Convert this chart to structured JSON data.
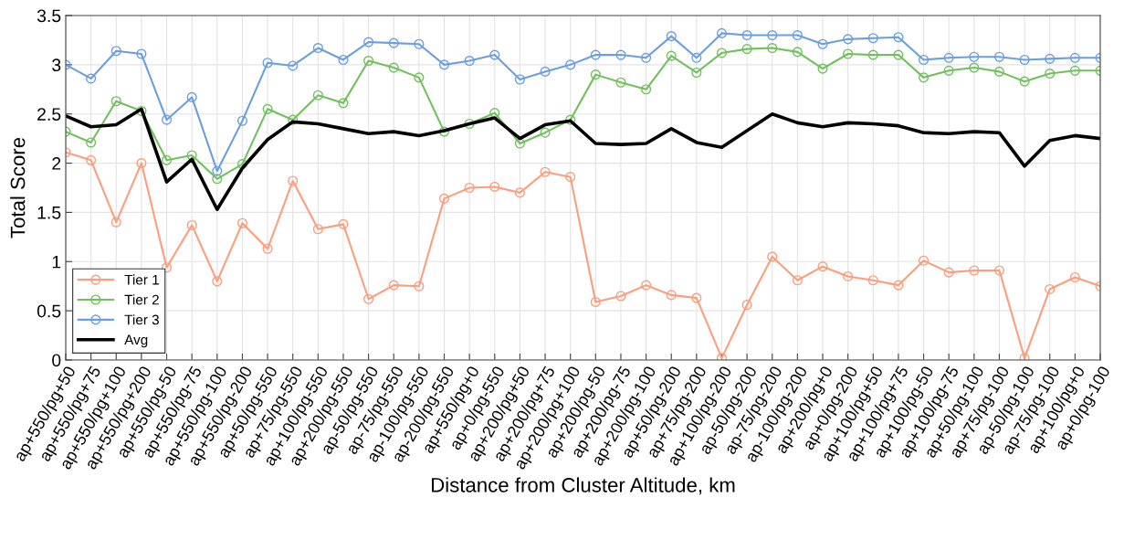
{
  "chart_data": {
    "type": "line",
    "xlabel": "Distance from Cluster Altitude, km",
    "ylabel": "Total Score",
    "categories": [
      "ap+550/pg+50",
      "ap+550/pg+75",
      "ap+550/pg+100",
      "ap+550/pg+200",
      "ap+550/pg-50",
      "ap+550/pg-75",
      "ap+550/pg-100",
      "ap+550/pg-200",
      "ap+50/pg-550",
      "ap+75/pg-550",
      "ap+100/pg-550",
      "ap+200/pg-550",
      "ap-50/pg-550",
      "ap-75/pg-550",
      "ap-100/pg-550",
      "ap-200/pg-550",
      "ap+550/pg+0",
      "ap+0/pg-550",
      "ap+200/pg+50",
      "ap+200/pg+75",
      "ap+200/pg+100",
      "ap+200/pg-50",
      "ap+200/pg-75",
      "ap+200/pg-100",
      "ap+50/pg-200",
      "ap+75/pg-200",
      "ap+100/pg-200",
      "ap-50/pg-200",
      "ap-75/pg-200",
      "ap-100/pg-200",
      "ap+200/pg+0",
      "ap+0/pg-200",
      "ap+100/pg+50",
      "ap+100/pg+75",
      "ap+100/pg-50",
      "ap+100/pg-75",
      "ap+50/pg-100",
      "ap+75/pg-100",
      "ap-50/pg-100",
      "ap-75/pg-100",
      "ap+100/pg+0",
      "ap+0/pg-100"
    ],
    "series": [
      {
        "name": "Tier 1",
        "color": "#fc9d7c",
        "marker": "circle",
        "values": [
          2.11,
          2.03,
          1.4,
          2.0,
          0.94,
          1.37,
          0.8,
          1.39,
          1.13,
          1.82,
          1.33,
          1.38,
          0.62,
          0.76,
          0.75,
          1.64,
          1.75,
          1.76,
          1.7,
          1.91,
          1.86,
          0.59,
          0.65,
          0.76,
          0.66,
          0.63,
          0.02,
          0.56,
          1.05,
          0.81,
          0.95,
          0.85,
          0.81,
          0.76,
          1.01,
          0.89,
          0.91,
          0.91,
          0.02,
          0.72,
          0.84,
          0.75
        ]
      },
      {
        "name": "Tier 2",
        "color": "#70c15c",
        "marker": "circle",
        "values": [
          2.32,
          2.21,
          2.63,
          2.53,
          2.03,
          2.08,
          1.84,
          1.99,
          2.55,
          2.44,
          2.69,
          2.61,
          3.04,
          2.97,
          2.87,
          2.32,
          2.4,
          2.51,
          2.2,
          2.31,
          2.44,
          2.9,
          2.82,
          2.75,
          3.09,
          2.92,
          3.12,
          3.16,
          3.17,
          3.13,
          2.96,
          3.11,
          3.1,
          3.1,
          2.87,
          2.94,
          2.97,
          2.93,
          2.83,
          2.91,
          2.94,
          2.94
        ]
      },
      {
        "name": "Tier 3",
        "color": "#6a9fdf",
        "marker": "circle",
        "values": [
          3.0,
          2.86,
          3.14,
          3.11,
          2.44,
          2.67,
          1.92,
          2.43,
          3.02,
          2.99,
          3.17,
          3.05,
          3.23,
          3.22,
          3.21,
          3.0,
          3.04,
          3.1,
          2.85,
          2.93,
          3.0,
          3.1,
          3.1,
          3.07,
          3.29,
          3.07,
          3.32,
          3.3,
          3.3,
          3.3,
          3.21,
          3.26,
          3.27,
          3.28,
          3.05,
          3.07,
          3.08,
          3.08,
          3.05,
          3.06,
          3.07,
          3.07
        ]
      },
      {
        "name": "Avg",
        "color": "#000000",
        "marker": "none",
        "values": [
          2.48,
          2.37,
          2.39,
          2.55,
          1.81,
          2.04,
          1.53,
          1.95,
          2.24,
          2.42,
          2.4,
          2.35,
          2.3,
          2.32,
          2.28,
          2.33,
          2.4,
          2.46,
          2.25,
          2.39,
          2.43,
          2.2,
          2.19,
          2.2,
          2.35,
          2.21,
          2.16,
          2.33,
          2.5,
          2.41,
          2.37,
          2.41,
          2.4,
          2.38,
          2.31,
          2.3,
          2.32,
          2.31,
          1.97,
          2.23,
          2.28,
          2.25
        ]
      }
    ],
    "ylim": [
      0,
      3.5
    ],
    "yticks": [
      0,
      0.5,
      1,
      1.5,
      2,
      2.5,
      3,
      3.5
    ],
    "grid": true,
    "legend": "bottom left",
    "line_style": "solid"
  }
}
